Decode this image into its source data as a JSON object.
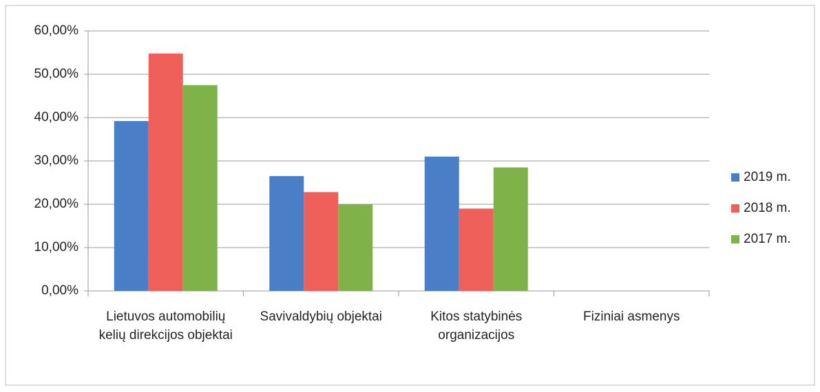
{
  "chart_data": {
    "type": "bar",
    "categories": [
      "Lietuvos automobilių kelių direkcijos objektai",
      "Savivaldybių objektai",
      "Kitos statybinės organizacijos",
      "Fiziniai asmenys"
    ],
    "series": [
      {
        "name": "2019 m.",
        "color": "#4a7fc8",
        "values": [
          39.2,
          26.5,
          31.0,
          0
        ]
      },
      {
        "name": "2018 m.",
        "color": "#f0605a",
        "values": [
          54.8,
          22.8,
          19.0,
          0
        ]
      },
      {
        "name": "2017 m.",
        "color": "#80b24a",
        "values": [
          47.5,
          20.0,
          28.5,
          0
        ]
      }
    ],
    "ylim": [
      0,
      60
    ],
    "yticks": [
      {
        "value": 0,
        "label": "0,00%"
      },
      {
        "value": 10,
        "label": "10,00%"
      },
      {
        "value": 20,
        "label": "20,00%"
      },
      {
        "value": 30,
        "label": "30,00%"
      },
      {
        "value": 40,
        "label": "40,00%"
      },
      {
        "value": 50,
        "label": "50,00%"
      },
      {
        "value": 60,
        "label": "60,00%"
      }
    ],
    "grid": true,
    "legend": "right"
  }
}
